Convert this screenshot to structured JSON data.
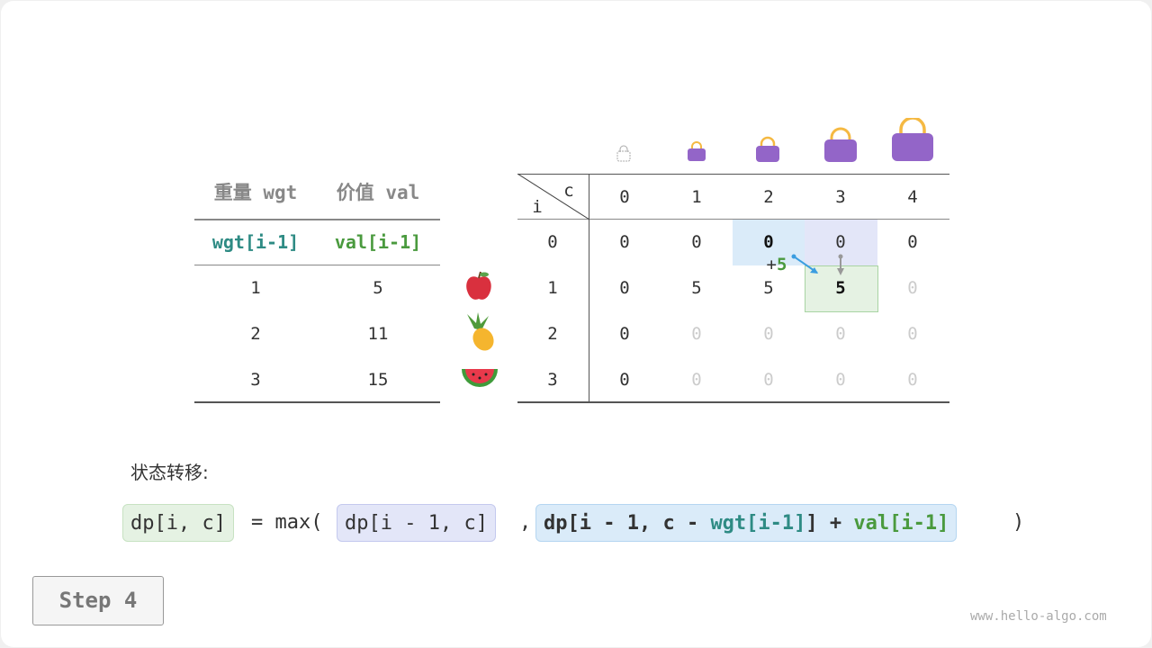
{
  "left_table": {
    "headers": [
      "重量 wgt",
      "价值 val"
    ],
    "subheaders": [
      "wgt[i-1]",
      "val[i-1]"
    ],
    "rows": [
      [
        "1",
        "5"
      ],
      [
        "2",
        "11"
      ],
      [
        "3",
        "15"
      ]
    ]
  },
  "items": [
    "apple-icon",
    "pineapple-icon",
    "watermelon-icon"
  ],
  "dp_table": {
    "corner_c": "c",
    "corner_i": "i",
    "cols": [
      "0",
      "1",
      "2",
      "3",
      "4"
    ],
    "rows": [
      "0",
      "1",
      "2",
      "3"
    ],
    "cells": [
      [
        "0",
        "0",
        "0",
        "0",
        "0"
      ],
      [
        "0",
        "5",
        "5",
        "5",
        "0"
      ],
      [
        "0",
        "0",
        "0",
        "0",
        "0"
      ],
      [
        "0",
        "0",
        "0",
        "0",
        "0"
      ]
    ],
    "computed": [
      [
        true,
        true,
        true,
        true,
        true
      ],
      [
        true,
        true,
        true,
        true,
        false
      ],
      [
        true,
        false,
        false,
        false,
        false
      ],
      [
        true,
        false,
        false,
        false,
        false
      ]
    ],
    "plus_label": "+",
    "plus_value": "5"
  },
  "colors": {
    "teal": "#2e8b84",
    "green": "#4a9a3e",
    "blue_cell": "#daebf9",
    "purple_cell": "#e3e6f8",
    "green_cell": "#e5f2e3",
    "bag": "#9365c8"
  },
  "transition_label": "状态转移:",
  "formula": {
    "lhs": "dp[i, c]",
    "eq": "= max(",
    "a": "dp[i - 1, c]",
    "comma": ",",
    "b1": "dp[i - 1, c - ",
    "b_wgt": "wgt[i-1]",
    "b2": "] + ",
    "b_val": "val[i-1]",
    "close": ")"
  },
  "step_button": "Step 4",
  "watermark": "www.hello-algo.com"
}
